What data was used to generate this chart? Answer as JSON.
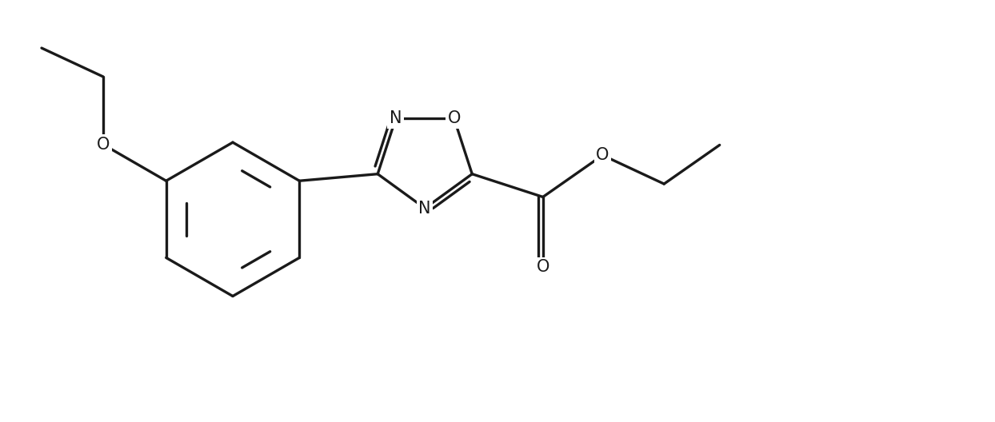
{
  "bg_color": "#ffffff",
  "line_color": "#1a1a1a",
  "line_width": 2.4,
  "font_size": 15,
  "figsize": [
    12.44,
    5.28
  ],
  "dpi": 100,
  "xlim": [
    0.5,
    12.5
  ],
  "ylim": [
    0.3,
    5.3
  ]
}
